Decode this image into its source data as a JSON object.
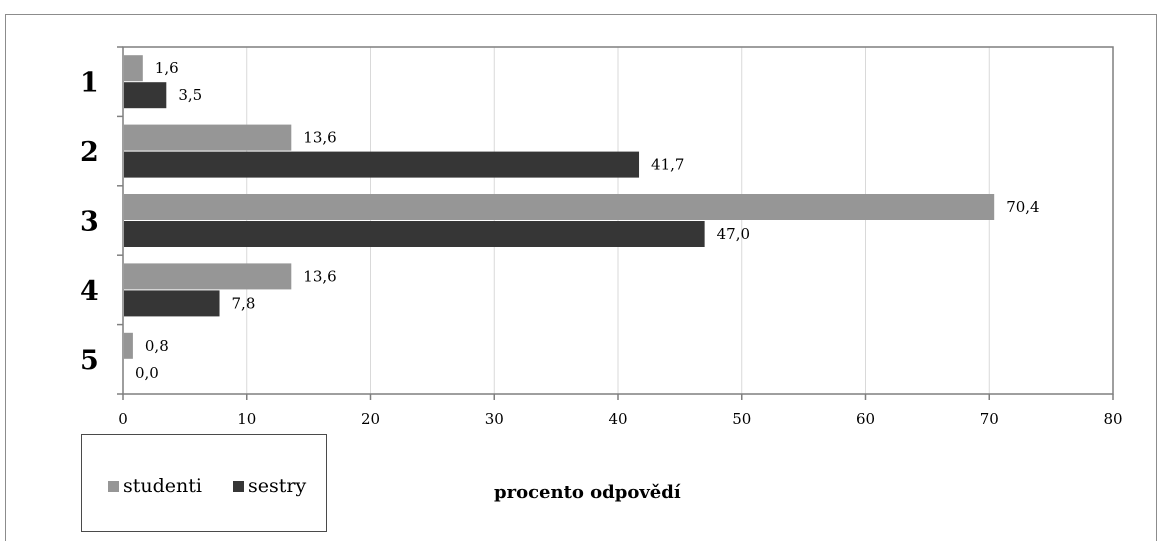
{
  "chart_data": {
    "type": "bar",
    "orientation": "horizontal",
    "categories": [
      "1",
      "2",
      "3",
      "4",
      "5"
    ],
    "series": [
      {
        "name": "studenti",
        "color": "#969696",
        "values": [
          1.6,
          13.6,
          70.4,
          13.6,
          0.8
        ],
        "labels": [
          "1,6",
          "13,6",
          "70,4",
          "13,6",
          "0,8"
        ]
      },
      {
        "name": "sestry",
        "color": "#363636",
        "values": [
          3.5,
          41.7,
          47.0,
          7.8,
          0.0
        ],
        "labels": [
          "3,5",
          "41,7",
          "47,0",
          "7,8",
          "0,0"
        ]
      }
    ],
    "xlim": [
      0,
      80
    ],
    "xticks": [
      0,
      10,
      20,
      30,
      40,
      50,
      60,
      70,
      80
    ],
    "xlabel": "procento odpovědí",
    "ylabel": "",
    "title": "",
    "grid": true,
    "legend_position": "bottom-left"
  }
}
